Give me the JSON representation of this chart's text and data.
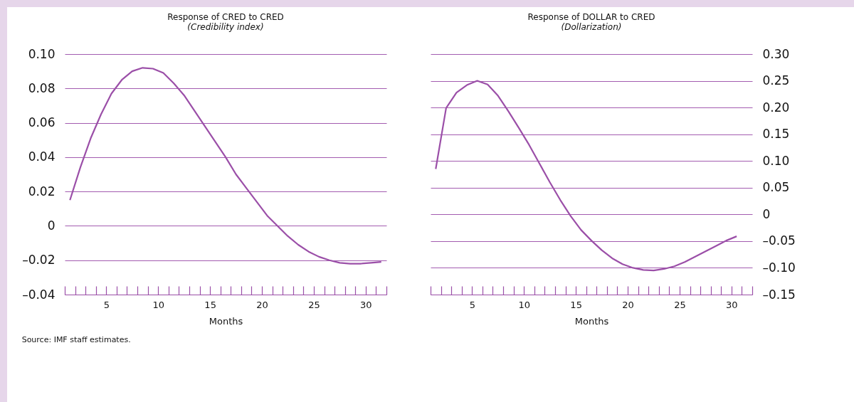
{
  "chart_data": [
    {
      "type": "line",
      "title": "Response of CRED to CRED",
      "subtitle": "(Credibility index)",
      "xlabel": "Months",
      "annotations": [
        "Source:  IMF staff estimates."
      ],
      "xlim": [
        1,
        32
      ],
      "xticks": [
        {
          "value": 1,
          "label": null
        },
        {
          "value": 2,
          "label": null
        },
        {
          "value": 3,
          "label": null
        },
        {
          "value": 4,
          "label": null
        },
        5,
        {
          "value": 6,
          "label": null
        },
        {
          "value": 7,
          "label": null
        },
        {
          "value": 8,
          "label": null
        },
        {
          "value": 9,
          "label": null
        },
        10,
        {
          "value": 11,
          "label": null
        },
        {
          "value": 12,
          "label": null
        },
        {
          "value": 13,
          "label": null
        },
        {
          "value": 14,
          "label": null
        },
        15,
        {
          "value": 16,
          "label": null
        },
        {
          "value": 17,
          "label": null
        },
        {
          "value": 18,
          "label": null
        },
        {
          "value": 19,
          "label": null
        },
        20,
        {
          "value": 21,
          "label": null
        },
        {
          "value": 22,
          "label": null
        },
        {
          "value": 23,
          "label": null
        },
        {
          "value": 24,
          "label": null
        },
        25,
        {
          "value": 26,
          "label": null
        },
        {
          "value": 27,
          "label": null
        },
        {
          "value": 28,
          "label": null
        },
        {
          "value": 29,
          "label": null
        },
        30,
        {
          "value": 31,
          "label": null
        },
        {
          "value": 32,
          "label": null
        }
      ],
      "ylim": [
        -0.04,
        0.1
      ],
      "yticks": [
        {
          "value": -0.04,
          "label": "–0.04"
        },
        {
          "value": -0.02,
          "label": "–0.02"
        },
        0,
        0.02,
        0.04,
        0.06,
        0.08,
        {
          "value": 0.1,
          "label": "0.10"
        }
      ],
      "grid": "y",
      "series": [
        {
          "color": "#9b4fa8",
          "x": [
            1.5,
            2.5,
            3.5,
            4.5,
            5.5,
            6.5,
            7.5,
            8.5,
            9.5,
            10.5,
            11.5,
            12.5,
            13.5,
            14.5,
            15.5,
            16.5,
            17.5,
            18.5,
            19.5,
            20.5,
            21.5,
            22.5,
            23.5,
            24.5,
            25.5,
            26.5,
            27.5,
            28.5,
            29.5,
            30.5,
            31.5
          ],
          "values": [
            0.015,
            0.034,
            0.051,
            0.065,
            0.077,
            0.085,
            0.09,
            0.092,
            0.0915,
            0.089,
            0.083,
            0.076,
            0.067,
            0.058,
            0.049,
            0.04,
            0.03,
            0.022,
            0.014,
            0.006,
            0,
            -0.006,
            -0.011,
            -0.015,
            -0.018,
            -0.02,
            -0.0215,
            -0.022,
            -0.022,
            -0.0215,
            -0.021
          ]
        }
      ]
    },
    {
      "type": "line",
      "title": "Response of DOLLAR to CRED",
      "subtitle": "(Dollarization)",
      "xlabel": "Months",
      "xlim": [
        1,
        32
      ],
      "xticks": [
        {
          "value": 1,
          "label": null
        },
        {
          "value": 2,
          "label": null
        },
        {
          "value": 3,
          "label": null
        },
        {
          "value": 4,
          "label": null
        },
        5,
        {
          "value": 6,
          "label": null
        },
        {
          "value": 7,
          "label": null
        },
        {
          "value": 8,
          "label": null
        },
        {
          "value": 9,
          "label": null
        },
        10,
        {
          "value": 11,
          "label": null
        },
        {
          "value": 12,
          "label": null
        },
        {
          "value": 13,
          "label": null
        },
        {
          "value": 14,
          "label": null
        },
        15,
        {
          "value": 16,
          "label": null
        },
        {
          "value": 17,
          "label": null
        },
        {
          "value": 18,
          "label": null
        },
        {
          "value": 19,
          "label": null
        },
        20,
        {
          "value": 21,
          "label": null
        },
        {
          "value": 22,
          "label": null
        },
        {
          "value": 23,
          "label": null
        },
        {
          "value": 24,
          "label": null
        },
        25,
        {
          "value": 26,
          "label": null
        },
        {
          "value": 27,
          "label": null
        },
        {
          "value": 28,
          "label": null
        },
        {
          "value": 29,
          "label": null
        },
        30,
        {
          "value": 31,
          "label": null
        },
        {
          "value": 32,
          "label": null
        }
      ],
      "y2lim": [
        -0.15,
        0.3
      ],
      "y2ticks": [
        {
          "value": -0.15,
          "label": "–0.15"
        },
        {
          "value": -0.1,
          "label": "–0.10"
        },
        {
          "value": -0.05,
          "label": "–0.05"
        },
        0,
        0.05,
        {
          "value": 0.1,
          "label": "0.10"
        },
        0.15,
        {
          "value": 0.2,
          "label": "0.20"
        },
        0.25,
        {
          "value": 0.3,
          "label": "0.30"
        }
      ],
      "grid": "y",
      "series": [
        {
          "color": "#9b4fa8",
          "axis": "y2",
          "x": [
            1.5,
            2.5,
            3.5,
            4.5,
            5.5,
            6.5,
            7.5,
            8.5,
            9.5,
            10.5,
            11.5,
            12.5,
            13.5,
            14.5,
            15.5,
            16.5,
            17.5,
            18.5,
            19.5,
            20.5,
            21.5,
            22.5,
            23.5,
            24.5,
            25.5,
            26.5,
            27.5,
            28.5,
            29.5,
            30.5
          ],
          "values": [
            0.085,
            0.199,
            0.228,
            0.242,
            0.25,
            0.243,
            0.222,
            0.193,
            0.162,
            0.13,
            0.095,
            0.06,
            0.027,
            -0.003,
            -0.029,
            -0.049,
            -0.067,
            -0.082,
            -0.093,
            -0.1,
            -0.104,
            -0.105,
            -0.102,
            -0.097,
            -0.089,
            -0.079,
            -0.069,
            -0.059,
            -0.049,
            -0.041
          ]
        }
      ]
    }
  ]
}
